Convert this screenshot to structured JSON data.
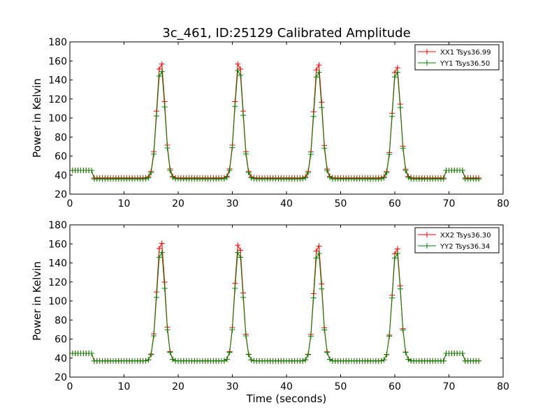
{
  "figure_title": "3c_461, ID:25129 Calibrated Amplitude",
  "colors": {
    "red": "#ff0000",
    "green": "#008000",
    "axes": "#000000",
    "background": "#ffffff"
  },
  "chart_data": [
    {
      "type": "line",
      "title": "3c_461, ID:25129 Calibrated Amplitude",
      "xlabel": "",
      "ylabel": "Power in Kelvin",
      "xlim": [
        0,
        80
      ],
      "ylim": [
        20,
        180
      ],
      "x_ticks": [
        "0",
        "10",
        "20",
        "30",
        "40",
        "50",
        "60",
        "70",
        "80"
      ],
      "y_ticks": [
        "20",
        "40",
        "60",
        "80",
        "100",
        "120",
        "140",
        "160",
        "180"
      ],
      "grid": false,
      "legend_position": "upper right",
      "marker": "+",
      "series": [
        {
          "name": "XX1 Tsys36.99",
          "color": "#ff0000",
          "baseline": 37,
          "segments": [
            {
              "x_start": 0,
              "x_end": 4,
              "level": 45
            },
            {
              "x_start": 69.5,
              "x_end": 72.5,
              "level": 45
            }
          ],
          "peaks": [
            {
              "x": 16.8,
              "peak": 161
            },
            {
              "x": 31.2,
              "peak": 161
            },
            {
              "x": 45.8,
              "peak": 160
            },
            {
              "x": 60.3,
              "peak": 157
            }
          ],
          "x_range": [
            0,
            75.5
          ]
        },
        {
          "name": "YY1 Tsys36.50",
          "color": "#008000",
          "baseline": 36,
          "segments": [
            {
              "x_start": 0,
              "x_end": 4,
              "level": 45
            },
            {
              "x_start": 69.5,
              "x_end": 72.5,
              "level": 45
            }
          ],
          "peaks": [
            {
              "x": 16.8,
              "peak": 153
            },
            {
              "x": 31.2,
              "peak": 154
            },
            {
              "x": 45.8,
              "peak": 152
            },
            {
              "x": 60.3,
              "peak": 152
            }
          ],
          "x_range": [
            0,
            75.5
          ]
        }
      ]
    },
    {
      "type": "line",
      "title": "",
      "xlabel": "Time (seconds)",
      "ylabel": "Power in Kelvin",
      "xlim": [
        0,
        80
      ],
      "ylim": [
        20,
        180
      ],
      "x_ticks": [
        "0",
        "10",
        "20",
        "30",
        "40",
        "50",
        "60",
        "70",
        "80"
      ],
      "y_ticks": [
        "20",
        "40",
        "60",
        "80",
        "100",
        "120",
        "140",
        "160",
        "180"
      ],
      "grid": false,
      "legend_position": "upper right",
      "marker": "+",
      "series": [
        {
          "name": "XX2 Tsys36.30",
          "color": "#ff0000",
          "baseline": 37,
          "segments": [
            {
              "x_start": 0,
              "x_end": 4,
              "level": 45
            },
            {
              "x_start": 69.5,
              "x_end": 72.5,
              "level": 45
            }
          ],
          "peaks": [
            {
              "x": 16.8,
              "peak": 165
            },
            {
              "x": 31.2,
              "peak": 163
            },
            {
              "x": 45.8,
              "peak": 162
            },
            {
              "x": 60.3,
              "peak": 159
            }
          ],
          "x_range": [
            0,
            75.5
          ]
        },
        {
          "name": "YY2 Tsys36.34",
          "color": "#008000",
          "baseline": 37,
          "segments": [
            {
              "x_start": 0,
              "x_end": 4,
              "level": 45
            },
            {
              "x_start": 69.5,
              "x_end": 72.5,
              "level": 45
            }
          ],
          "peaks": [
            {
              "x": 16.8,
              "peak": 155
            },
            {
              "x": 31.2,
              "peak": 155
            },
            {
              "x": 45.8,
              "peak": 154
            },
            {
              "x": 60.3,
              "peak": 154
            }
          ],
          "x_range": [
            0,
            75.5
          ]
        }
      ]
    }
  ]
}
